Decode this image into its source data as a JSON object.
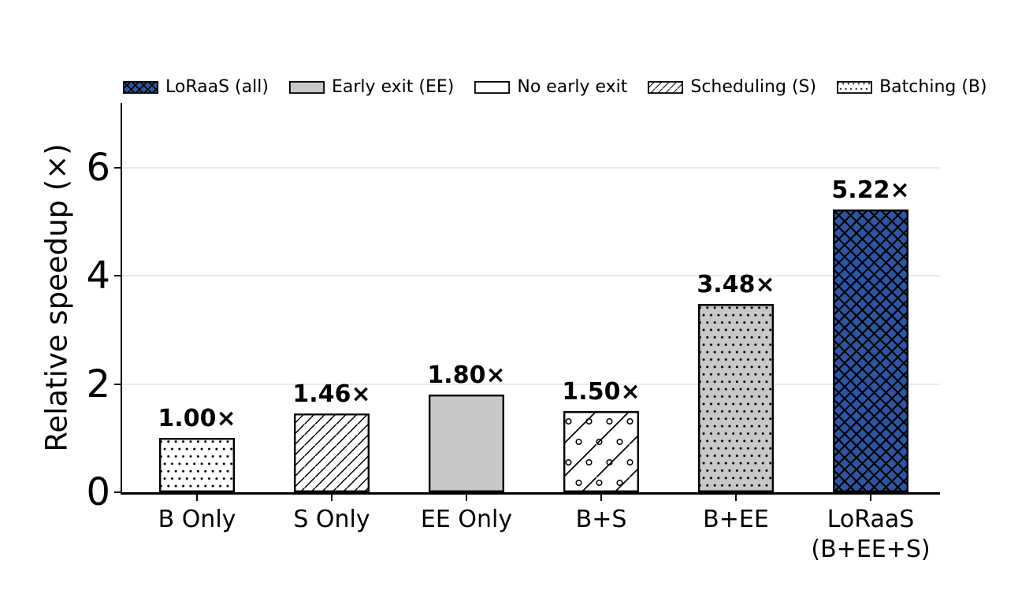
{
  "legend": {
    "entries": [
      {
        "label": "LoRaaS (all)",
        "style": "blue-crosshatch"
      },
      {
        "label": "Early exit (EE)",
        "style": "gray-solid"
      },
      {
        "label": "No early exit",
        "style": "white-solid"
      },
      {
        "label": "Scheduling (S)",
        "style": "white-diagonal"
      },
      {
        "label": "Batching (B)",
        "style": "white-dots"
      }
    ]
  },
  "chart_data": {
    "type": "bar",
    "title": "",
    "xlabel": "",
    "ylabel": "Relative speedup (×)",
    "ylim": [
      0,
      7.19
    ],
    "yticks": [
      0,
      2,
      4,
      6
    ],
    "ytick_labels": [
      "0",
      "2",
      "4",
      "6"
    ],
    "grid": "horizontal gridlines at y = 2, 4, 6",
    "legend_position": "top",
    "categories": [
      "B Only",
      "S Only",
      "EE Only",
      "B+S",
      "B+EE",
      "LoRaaS\n(B+EE+S)"
    ],
    "values": [
      1.0,
      1.46,
      1.8,
      1.5,
      3.48,
      5.22
    ],
    "bar_labels": [
      "1.00×",
      "1.46×",
      "1.80×",
      "1.50×",
      "3.48×",
      "5.22×"
    ],
    "bar_styles": [
      "white-dots",
      "white-diagonal",
      "gray-solid",
      "white-diagonal-circles",
      "gray-dots",
      "blue-crosshatch"
    ],
    "colors": {
      "blue": "#2C56A4",
      "gray": "#C8C8C8",
      "white": "#FFFFFF",
      "hatch": "#000000",
      "grid": "#E9E9E9",
      "axis": "#000000",
      "text": "#000000"
    }
  }
}
